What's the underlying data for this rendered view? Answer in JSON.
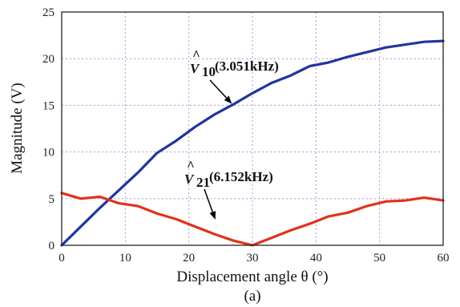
{
  "chart_data": {
    "type": "line",
    "xlabel": "Displacement angle θ (°)",
    "ylabel": "Magnitude (V)",
    "caption": "(a)",
    "xlim": [
      0,
      60
    ],
    "ylim": [
      0,
      25
    ],
    "xticks": [
      0,
      10,
      20,
      30,
      40,
      50,
      60
    ],
    "yticks": [
      0,
      5,
      10,
      15,
      20,
      25
    ],
    "grid": true,
    "series": [
      {
        "name": "V̂10(3.051kHz)",
        "symbol": "V",
        "subscript": "10",
        "freq": "(3.051kHz)",
        "color": "#22349e",
        "x": [
          0,
          3,
          6,
          9,
          12,
          15,
          18,
          21,
          24,
          27,
          30,
          33,
          36,
          39,
          42,
          45,
          48,
          51,
          54,
          57,
          60
        ],
        "y": [
          0,
          2.0,
          4.0,
          5.9,
          7.8,
          9.9,
          11.2,
          12.7,
          14.0,
          15.1,
          16.3,
          17.4,
          18.2,
          19.2,
          19.6,
          20.2,
          20.7,
          21.2,
          21.5,
          21.8,
          21.9
        ]
      },
      {
        "name": "V̂21(6.152kHz)",
        "symbol": "V",
        "subscript": "21",
        "freq": "(6.152kHz)",
        "color": "#e0321b",
        "x": [
          0,
          3,
          6,
          9,
          12,
          15,
          18,
          21,
          24,
          27,
          30,
          33,
          36,
          39,
          42,
          45,
          48,
          51,
          54,
          57,
          60
        ],
        "y": [
          5.6,
          5.0,
          5.2,
          4.5,
          4.2,
          3.4,
          2.8,
          2.0,
          1.2,
          0.5,
          0,
          0.8,
          1.6,
          2.3,
          3.1,
          3.5,
          4.2,
          4.7,
          4.8,
          5.1,
          4.8
        ]
      }
    ]
  }
}
